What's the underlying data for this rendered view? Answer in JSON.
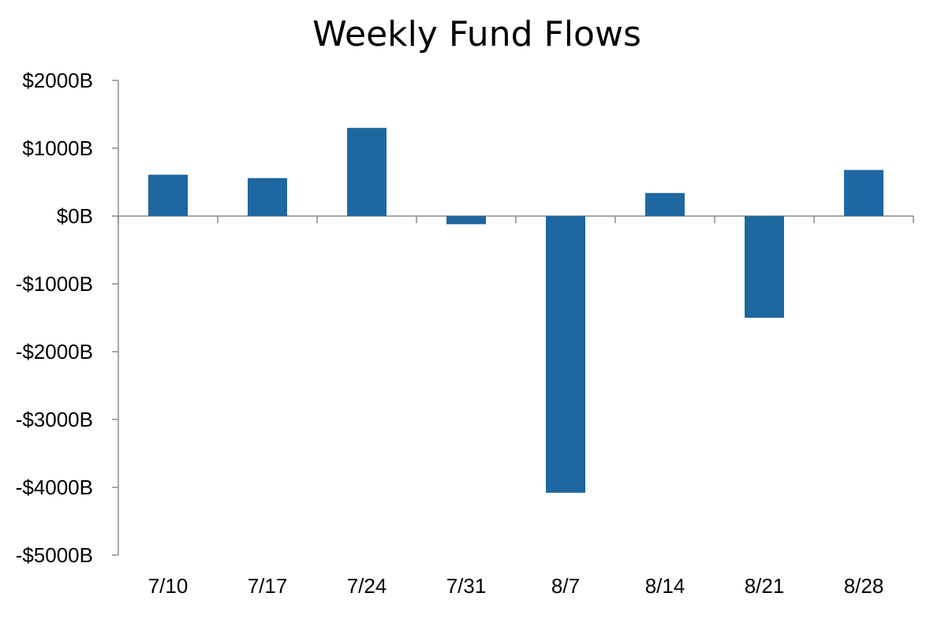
{
  "chart_data": {
    "type": "bar",
    "title": "Weekly Fund Flows",
    "xlabel": "",
    "ylabel": "",
    "categories": [
      "7/10",
      "7/17",
      "7/24",
      "7/31",
      "8/7",
      "8/14",
      "8/21",
      "8/28"
    ],
    "values": [
      610,
      560,
      1300,
      -120,
      -4080,
      340,
      -1500,
      680
    ],
    "ylim": [
      -5000,
      2000
    ],
    "yticks": [
      2000,
      1000,
      0,
      -1000,
      -2000,
      -3000,
      -4000,
      -5000
    ],
    "ytick_labels": [
      "$2000B",
      "$1000B",
      "$0B",
      "-$1000B",
      "-$2000B",
      "-$3000B",
      "-$4000B",
      "-$5000B"
    ],
    "grid": false,
    "legend": "none",
    "bar_color": "#1f67a0",
    "axis_color": "#8c8c8c"
  }
}
